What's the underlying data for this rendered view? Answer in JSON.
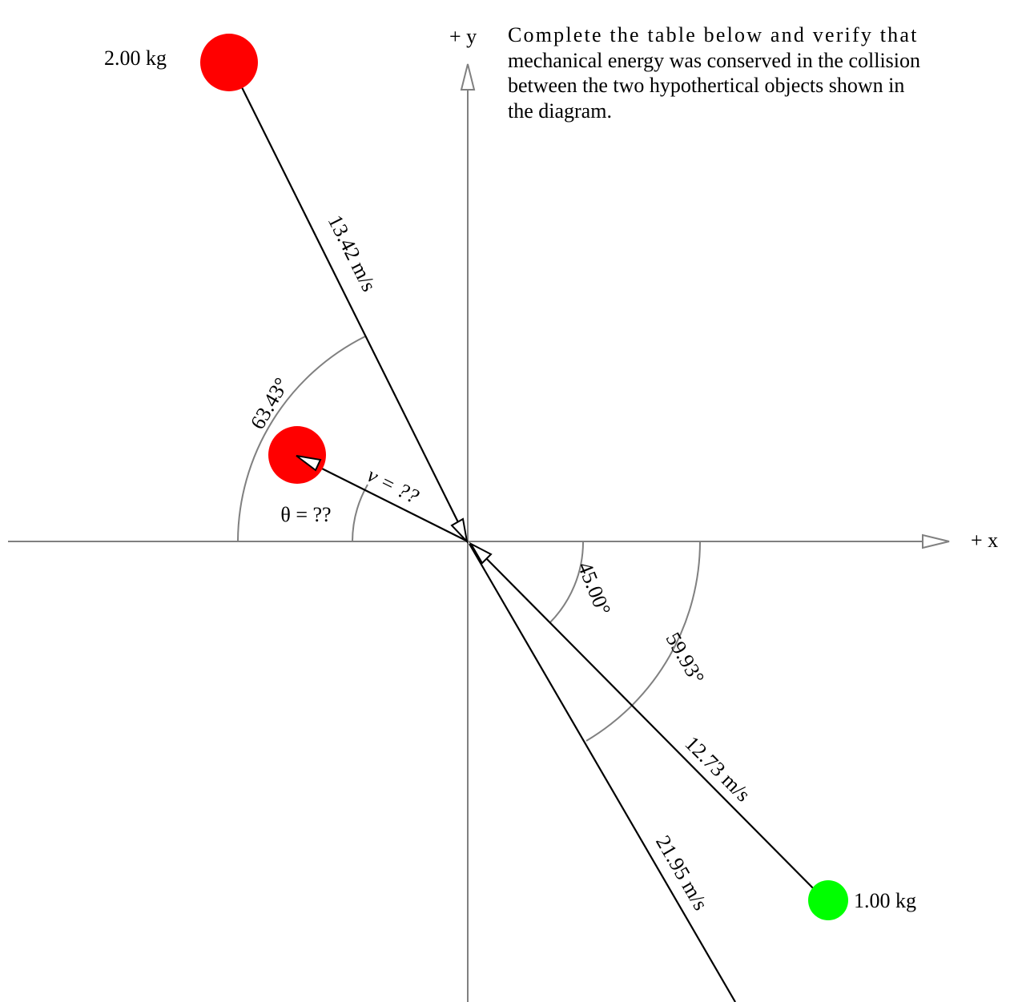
{
  "instructions": {
    "line1": "Complete the table below and verify that",
    "line2": "mechanical energy was conserved in the collision",
    "line3": "between the two hypothertical objects shown in",
    "line4": "the diagram."
  },
  "axes": {
    "x_label": "+ x",
    "y_label": "+ y",
    "color": "#808080"
  },
  "objects": {
    "heavy_mass_label": "2.00 kg",
    "light_mass_label": "1.00 kg",
    "heavy_color": "#ff0000",
    "light_color": "#00ff00"
  },
  "vectors": {
    "heavy_initial_speed": "13.42 m/s",
    "heavy_final_speed": "v = ??",
    "light_initial_speed": "12.73 m/s",
    "light_final_speed": "21.95 m/s"
  },
  "angles": {
    "heavy_initial": "63.43°",
    "heavy_final": "θ = ??",
    "light_initial": "45.00°",
    "light_final": "59.93°"
  }
}
